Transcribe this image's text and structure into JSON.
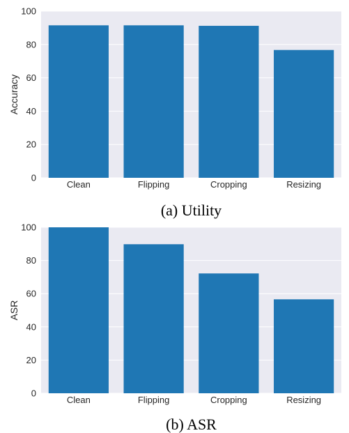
{
  "style": {
    "panel_background": "#eaeaf2",
    "grid_color": "#ffffff",
    "bar_color": "#1f77b4"
  },
  "chart_data": [
    {
      "type": "bar",
      "caption": "(a) Utility",
      "categories": [
        "Clean",
        "Flipping",
        "Cropping",
        "Resizing"
      ],
      "values": [
        91.5,
        91.5,
        91.2,
        76.7
      ],
      "xlabel": "",
      "ylabel": "Accuracy",
      "ylim": [
        0,
        100
      ],
      "yticks": [
        0,
        20,
        40,
        60,
        80,
        100
      ],
      "grid": true
    },
    {
      "type": "bar",
      "caption": "(b) ASR",
      "categories": [
        "Clean",
        "Flipping",
        "Cropping",
        "Resizing"
      ],
      "values": [
        100,
        89.8,
        72.2,
        56.6
      ],
      "xlabel": "",
      "ylabel": "ASR",
      "ylim": [
        0,
        100
      ],
      "yticks": [
        0,
        20,
        40,
        60,
        80,
        100
      ],
      "grid": true
    }
  ]
}
